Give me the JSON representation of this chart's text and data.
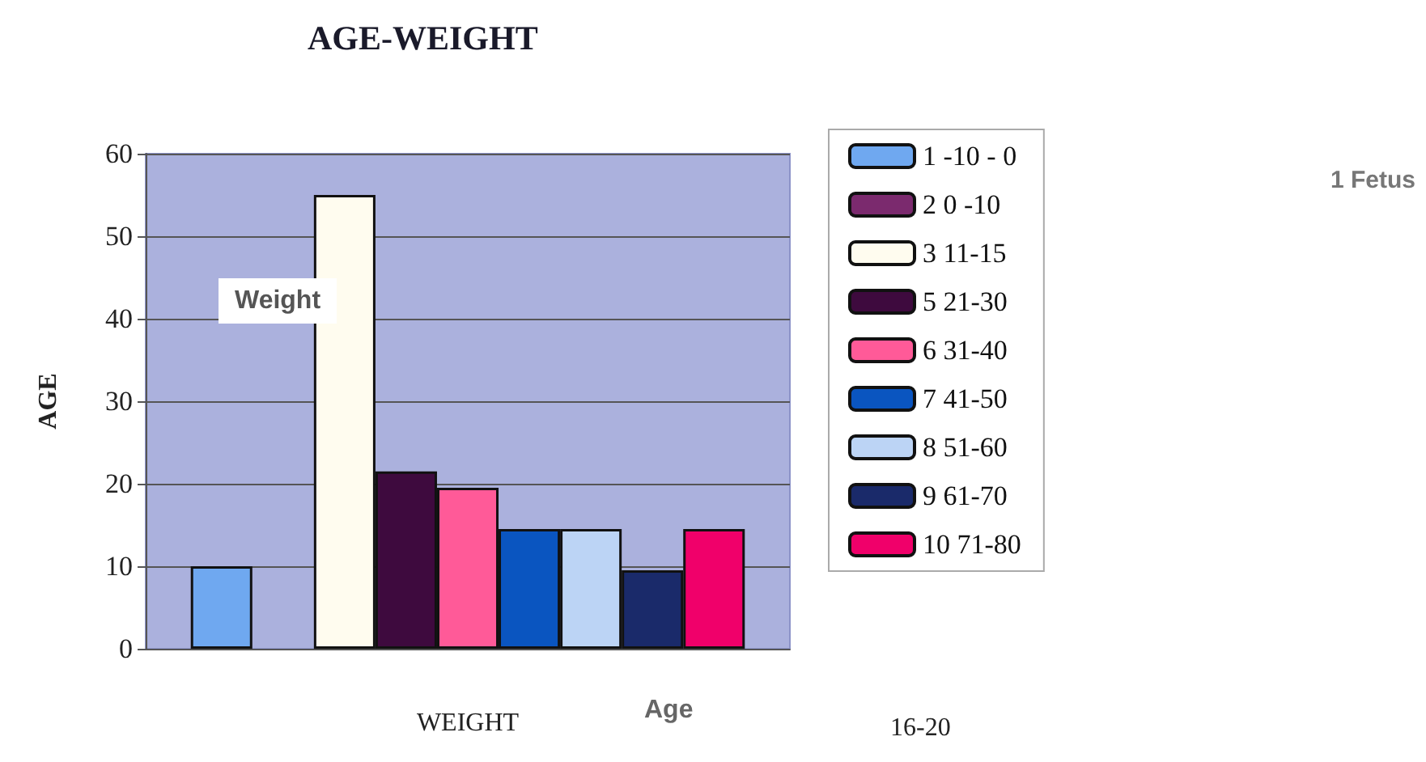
{
  "chart_data": {
    "type": "bar",
    "title": "AGE-WEIGHT",
    "xlabel": "WEIGHT",
    "ylabel": "AGE",
    "categories": [
      null
    ],
    "series": [
      {
        "name": "1 -10 - 0",
        "color": "#6fa8f0",
        "values": [
          10
        ]
      },
      {
        "name": "2 0 -10",
        "color": "#7b2a6e",
        "values": [
          null
        ]
      },
      {
        "name": "3 11-15",
        "color": "#fffcef",
        "values": [
          55
        ]
      },
      {
        "name": "5 21-30",
        "color": "#3e0a3e",
        "values": [
          21.5
        ]
      },
      {
        "name": "6 31-40",
        "color": "#ff5a98",
        "values": [
          19.5
        ]
      },
      {
        "name": "7 41-50",
        "color": "#0a55c0",
        "values": [
          14.5
        ]
      },
      {
        "name": "8 51-60",
        "color": "#bcd4f5",
        "values": [
          14.5
        ]
      },
      {
        "name": "9 61-70",
        "color": "#1a2a6a",
        "values": [
          9.5
        ]
      },
      {
        "name": "10 71-80",
        "color": "#f0006a",
        "values": [
          14.5
        ]
      }
    ],
    "ylim": [
      0,
      60
    ],
    "yticks": [
      0,
      10,
      20,
      30,
      40,
      50,
      60
    ],
    "grid": "y",
    "legend": "right",
    "annotations": [
      "Weight",
      "1 Fetus",
      "Age",
      "16-20"
    ]
  }
}
